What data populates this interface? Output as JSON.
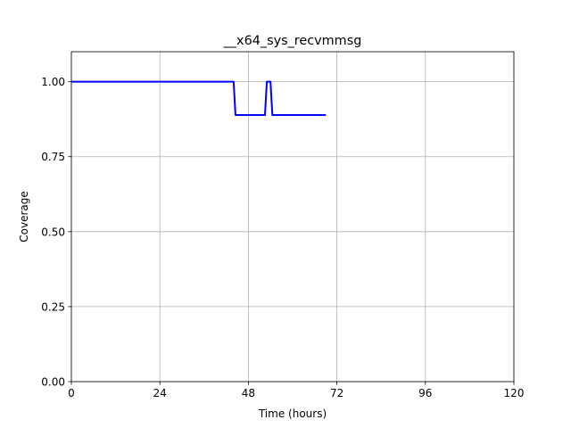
{
  "chart_data": {
    "type": "line",
    "title": "__x64_sys_recvmmsg",
    "xlabel": "Time (hours)",
    "ylabel": "Coverage",
    "xlim": [
      0,
      120
    ],
    "ylim": [
      0,
      1.1
    ],
    "xticks": [
      0,
      24,
      48,
      72,
      96,
      120
    ],
    "yticks": [
      0.0,
      0.25,
      0.5,
      0.75,
      1.0
    ],
    "grid": true,
    "series": [
      {
        "color": "#0000ff",
        "x": [
          0,
          44,
          44.5,
          52.5,
          53,
          54,
          54.5,
          69
        ],
        "y": [
          1.0,
          1.0,
          0.889,
          0.889,
          1.0,
          1.0,
          0.889,
          0.889
        ]
      }
    ]
  }
}
